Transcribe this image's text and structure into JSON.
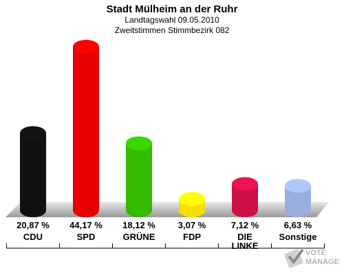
{
  "header": {
    "title": "Stadt Mülheim an der Ruhr",
    "subtitle1": "Landtagswahl 09.05.2010",
    "subtitle2": "Zweitstimmen Stimmbezirk 082"
  },
  "chart_data": {
    "type": "bar",
    "title": "Stadt Mülheim an der Ruhr",
    "subtitle": "Landtagswahl 09.05.2010 / Zweitstimmen Stimmbezirk 082",
    "categories": [
      "CDU",
      "SPD",
      "GRÜNE",
      "FDP",
      "DIE LINKE",
      "Sonstige"
    ],
    "category_lines": [
      [
        "CDU"
      ],
      [
        "SPD"
      ],
      [
        "GRÜNE"
      ],
      [
        "FDP"
      ],
      [
        "DIE",
        "LINKE"
      ],
      [
        "Sonstige"
      ]
    ],
    "values": [
      20.87,
      44.17,
      18.12,
      3.07,
      7.12,
      6.63
    ],
    "value_labels": [
      "20,87 %",
      "44,17 %",
      "18,12 %",
      "3,07 %",
      "7,12 %",
      "6,63 %"
    ],
    "colors": [
      "#111111",
      "#e80000",
      "#33bb00",
      "#f5e000",
      "#cc1144",
      "#9aaedd"
    ],
    "xlabel": "",
    "ylabel": "",
    "ylim": [
      0,
      44.17
    ],
    "grid": false,
    "legend": "none"
  },
  "watermark": {
    "text": "VOTE MANAGER",
    "icon": "vote-manager-logo-icon"
  }
}
